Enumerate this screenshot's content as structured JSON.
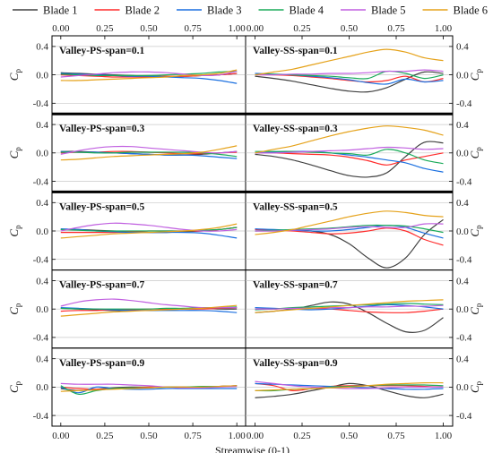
{
  "chart_data": {
    "type": "line",
    "legend": {
      "placement": "top",
      "series": [
        {
          "name": "Blade 1",
          "color": "#404040"
        },
        {
          "name": "Blade 2",
          "color": "#ff2a2a"
        },
        {
          "name": "Blade 3",
          "color": "#1a6fe0"
        },
        {
          "name": "Blade 4",
          "color": "#1aab5a"
        },
        {
          "name": "Blade 5",
          "color": "#c05fe0"
        },
        {
          "name": "Blade 6",
          "color": "#e5a21a"
        }
      ]
    },
    "xlabel": "Streamwise (0-1)",
    "ylabel_main": "C",
    "ylabel_sub": "p",
    "xlim": [
      -0.05,
      1.05
    ],
    "ylim": [
      -0.55,
      0.55
    ],
    "xticks": [
      "0.00",
      "0.25",
      "0.50",
      "0.75",
      "1.00"
    ],
    "yticks": [
      "0.4",
      "0.0",
      "-0.4"
    ],
    "x": [
      0.0,
      0.1,
      0.2,
      0.3,
      0.4,
      0.5,
      0.6,
      0.7,
      0.8,
      0.9,
      1.0
    ],
    "panels": [
      {
        "row": 0,
        "col": 0,
        "label": "Valley-PS-span=0.1",
        "series": [
          [
            0.03,
            0.02,
            0.01,
            0.0,
            -0.01,
            -0.02,
            -0.02,
            -0.02,
            -0.01,
            0.0,
            0.02
          ],
          [
            0.0,
            -0.01,
            -0.02,
            -0.03,
            -0.03,
            -0.03,
            -0.02,
            -0.02,
            -0.01,
            0.0,
            0.02
          ],
          [
            0.02,
            0.01,
            0.0,
            -0.01,
            -0.02,
            -0.02,
            -0.03,
            -0.04,
            -0.05,
            -0.08,
            -0.12
          ],
          [
            0.01,
            0.0,
            -0.01,
            -0.01,
            -0.01,
            -0.01,
            0.0,
            0.01,
            0.02,
            0.04,
            0.05
          ],
          [
            -0.03,
            -0.01,
            0.01,
            0.03,
            0.04,
            0.04,
            0.03,
            0.01,
            -0.01,
            0.0,
            0.05
          ],
          [
            -0.08,
            -0.08,
            -0.07,
            -0.06,
            -0.05,
            -0.04,
            -0.03,
            -0.01,
            0.0,
            0.02,
            0.07
          ]
        ]
      },
      {
        "row": 0,
        "col": 1,
        "label": "Valley-SS-span=0.1",
        "series": [
          [
            -0.02,
            -0.05,
            -0.09,
            -0.14,
            -0.19,
            -0.23,
            -0.24,
            -0.18,
            -0.06,
            0.04,
            0.02
          ],
          [
            0.0,
            0.0,
            -0.01,
            -0.03,
            -0.05,
            -0.08,
            -0.1,
            -0.08,
            -0.02,
            -0.1,
            -0.05
          ],
          [
            0.02,
            0.01,
            0.0,
            -0.02,
            -0.04,
            -0.07,
            -0.11,
            -0.13,
            -0.06,
            -0.1,
            -0.08
          ],
          [
            0.0,
            0.01,
            0.0,
            -0.01,
            -0.02,
            -0.04,
            -0.05,
            0.05,
            0.02,
            -0.05,
            0.0
          ],
          [
            0.0,
            0.0,
            0.01,
            0.01,
            0.02,
            0.02,
            0.03,
            0.05,
            0.05,
            0.07,
            0.05
          ],
          [
            0.0,
            0.04,
            0.08,
            0.14,
            0.2,
            0.26,
            0.32,
            0.36,
            0.32,
            0.24,
            0.2
          ]
        ]
      },
      {
        "row": 1,
        "col": 0,
        "label": "Valley-PS-span=0.3",
        "series": [
          [
            0.02,
            0.02,
            0.01,
            0.0,
            -0.01,
            -0.02,
            -0.03,
            -0.03,
            -0.02,
            0.0,
            0.02
          ],
          [
            0.0,
            0.01,
            0.01,
            0.02,
            0.02,
            0.01,
            0.0,
            -0.01,
            -0.01,
            0.0,
            0.01
          ],
          [
            0.02,
            0.01,
            0.01,
            0.0,
            -0.01,
            -0.02,
            -0.03,
            -0.03,
            -0.04,
            -0.06,
            -0.08
          ],
          [
            0.01,
            0.01,
            0.0,
            0.0,
            0.01,
            0.01,
            0.01,
            0.01,
            0.0,
            -0.02,
            -0.05
          ],
          [
            -0.02,
            0.03,
            0.07,
            0.09,
            0.09,
            0.07,
            0.05,
            0.03,
            0.01,
            0.0,
            0.02
          ],
          [
            -0.1,
            -0.09,
            -0.07,
            -0.05,
            -0.04,
            -0.03,
            -0.02,
            -0.01,
            0.01,
            0.05,
            0.1
          ]
        ]
      },
      {
        "row": 1,
        "col": 1,
        "label": "Valley-SS-span=0.3",
        "series": [
          [
            -0.02,
            -0.05,
            -0.1,
            -0.17,
            -0.25,
            -0.32,
            -0.34,
            -0.28,
            -0.05,
            0.15,
            0.14
          ],
          [
            0.0,
            0.0,
            -0.01,
            -0.02,
            -0.03,
            -0.06,
            -0.11,
            -0.17,
            -0.1,
            -0.05,
            0.0
          ],
          [
            0.0,
            0.01,
            0.02,
            0.02,
            0.0,
            -0.03,
            -0.06,
            -0.1,
            -0.14,
            -0.22,
            -0.27
          ],
          [
            0.02,
            0.02,
            0.02,
            0.01,
            0.0,
            -0.01,
            -0.03,
            0.05,
            0.0,
            -0.1,
            -0.15
          ],
          [
            0.0,
            0.0,
            0.01,
            0.02,
            0.03,
            0.04,
            0.06,
            0.08,
            0.07,
            0.05,
            0.06
          ],
          [
            0.0,
            0.05,
            0.1,
            0.17,
            0.24,
            0.3,
            0.35,
            0.38,
            0.36,
            0.32,
            0.25
          ]
        ]
      },
      {
        "row": 2,
        "col": 0,
        "label": "Valley-PS-span=0.5",
        "series": [
          [
            0.02,
            0.02,
            0.01,
            0.0,
            -0.01,
            -0.02,
            -0.02,
            -0.01,
            0.0,
            0.02,
            0.05
          ],
          [
            -0.02,
            -0.02,
            -0.02,
            -0.02,
            -0.01,
            0.0,
            0.0,
            0.0,
            0.0,
            0.02,
            0.05
          ],
          [
            0.03,
            0.02,
            0.0,
            -0.01,
            -0.02,
            -0.02,
            -0.02,
            -0.02,
            -0.03,
            -0.06,
            -0.1
          ],
          [
            0.02,
            0.01,
            0.0,
            0.0,
            0.0,
            0.0,
            0.0,
            0.0,
            0.01,
            0.02,
            0.05
          ],
          [
            0.0,
            0.05,
            0.09,
            0.11,
            0.1,
            0.08,
            0.05,
            0.02,
            0.0,
            0.0,
            0.02
          ],
          [
            -0.1,
            -0.08,
            -0.06,
            -0.04,
            -0.03,
            -0.02,
            -0.01,
            0.0,
            0.02,
            0.05,
            0.1
          ]
        ]
      },
      {
        "row": 2,
        "col": 1,
        "label": "Valley-SS-span=0.5",
        "series": [
          [
            0.0,
            0.0,
            0.01,
            0.0,
            -0.05,
            -0.18,
            -0.38,
            -0.52,
            -0.38,
            -0.05,
            0.16
          ],
          [
            0.02,
            0.01,
            0.0,
            -0.02,
            -0.04,
            -0.03,
            0.0,
            0.04,
            0.0,
            -0.12,
            -0.2
          ],
          [
            0.03,
            0.02,
            0.01,
            0.0,
            0.0,
            0.02,
            0.05,
            0.08,
            0.05,
            -0.03,
            -0.1
          ],
          [
            0.0,
            0.01,
            0.02,
            0.03,
            0.04,
            0.06,
            0.08,
            0.08,
            0.07,
            0.03,
            -0.02
          ],
          [
            0.0,
            0.0,
            0.01,
            0.02,
            0.03,
            0.05,
            0.06,
            0.05,
            0.05,
            0.1,
            0.1
          ],
          [
            -0.05,
            -0.02,
            0.02,
            0.08,
            0.14,
            0.2,
            0.25,
            0.28,
            0.26,
            0.22,
            0.2
          ]
        ]
      },
      {
        "row": 3,
        "col": 0,
        "label": "Valley-PS-span=0.7",
        "series": [
          [
            0.01,
            0.0,
            -0.01,
            -0.02,
            -0.02,
            -0.02,
            -0.01,
            0.0,
            0.01,
            0.0,
            0.0
          ],
          [
            -0.03,
            -0.02,
            -0.02,
            -0.01,
            -0.01,
            0.0,
            0.0,
            0.0,
            0.0,
            0.01,
            0.02
          ],
          [
            0.02,
            0.01,
            0.0,
            -0.01,
            -0.02,
            -0.02,
            -0.02,
            -0.02,
            -0.02,
            -0.03,
            -0.05
          ],
          [
            0.01,
            0.0,
            0.0,
            0.0,
            0.0,
            0.0,
            0.01,
            0.01,
            0.02,
            0.02,
            0.03
          ],
          [
            0.04,
            0.1,
            0.13,
            0.14,
            0.12,
            0.09,
            0.06,
            0.04,
            0.02,
            0.02,
            0.02
          ],
          [
            -0.1,
            -0.08,
            -0.06,
            -0.04,
            -0.03,
            -0.02,
            -0.01,
            0.0,
            0.01,
            0.03,
            0.05
          ]
        ]
      },
      {
        "row": 3,
        "col": 1,
        "label": "Valley-SS-span=0.7",
        "series": [
          [
            -0.05,
            -0.03,
            0.0,
            0.05,
            0.1,
            0.07,
            -0.05,
            -0.2,
            -0.32,
            -0.3,
            -0.12
          ],
          [
            0.0,
            0.0,
            0.01,
            0.01,
            0.0,
            -0.02,
            -0.04,
            -0.05,
            -0.05,
            -0.03,
            0.0
          ],
          [
            0.02,
            0.01,
            0.0,
            -0.01,
            0.0,
            0.02,
            0.04,
            0.06,
            0.05,
            0.03,
            0.0
          ],
          [
            -0.01,
            0.0,
            0.02,
            0.03,
            0.04,
            0.05,
            0.06,
            0.07,
            0.08,
            0.07,
            0.06
          ],
          [
            0.0,
            0.0,
            0.01,
            0.01,
            0.02,
            0.02,
            0.03,
            0.03,
            0.04,
            0.04,
            0.05
          ],
          [
            -0.05,
            -0.03,
            -0.01,
            0.01,
            0.03,
            0.05,
            0.07,
            0.09,
            0.11,
            0.12,
            0.13
          ]
        ]
      },
      {
        "row": 4,
        "col": 0,
        "label": "Valley-PS-span=0.9",
        "series": [
          [
            -0.02,
            -0.05,
            -0.03,
            -0.01,
            0.0,
            0.0,
            0.0,
            0.0,
            0.0,
            0.01,
            0.02
          ],
          [
            0.0,
            -0.02,
            -0.03,
            -0.02,
            -0.01,
            0.0,
            0.0,
            0.0,
            0.0,
            0.01,
            0.02
          ],
          [
            0.0,
            -0.08,
            0.0,
            -0.02,
            -0.03,
            -0.03,
            -0.02,
            -0.02,
            -0.02,
            -0.02,
            -0.02
          ],
          [
            0.02,
            -0.1,
            -0.05,
            -0.02,
            -0.01,
            -0.01,
            0.0,
            0.0,
            0.01,
            0.01,
            0.02
          ],
          [
            0.05,
            0.04,
            0.04,
            0.04,
            0.03,
            0.02,
            0.0,
            -0.01,
            -0.01,
            0.0,
            0.01
          ],
          [
            -0.06,
            -0.05,
            -0.04,
            -0.03,
            -0.02,
            -0.01,
            0.0,
            0.0,
            0.0,
            0.01,
            0.02
          ]
        ]
      },
      {
        "row": 4,
        "col": 1,
        "label": "Valley-SS-span=0.9",
        "series": [
          [
            -0.15,
            -0.13,
            -0.1,
            -0.05,
            0.0,
            0.05,
            0.02,
            -0.05,
            -0.12,
            -0.15,
            -0.1
          ],
          [
            0.05,
            0.02,
            -0.05,
            -0.02,
            0.01,
            0.02,
            0.02,
            0.02,
            0.02,
            0.01,
            0.0
          ],
          [
            0.05,
            0.04,
            0.03,
            0.02,
            0.01,
            0.0,
            -0.01,
            -0.02,
            -0.03,
            -0.03,
            -0.02
          ],
          [
            -0.05,
            -0.05,
            -0.03,
            -0.02,
            0.0,
            0.01,
            0.02,
            0.03,
            0.03,
            0.03,
            0.02
          ],
          [
            0.08,
            0.05,
            0.02,
            0.0,
            -0.01,
            -0.02,
            -0.02,
            -0.01,
            0.0,
            0.0,
            0.0
          ],
          [
            -0.05,
            -0.04,
            -0.03,
            -0.02,
            -0.01,
            0.0,
            0.02,
            0.04,
            0.05,
            0.06,
            0.06
          ]
        ]
      }
    ]
  }
}
